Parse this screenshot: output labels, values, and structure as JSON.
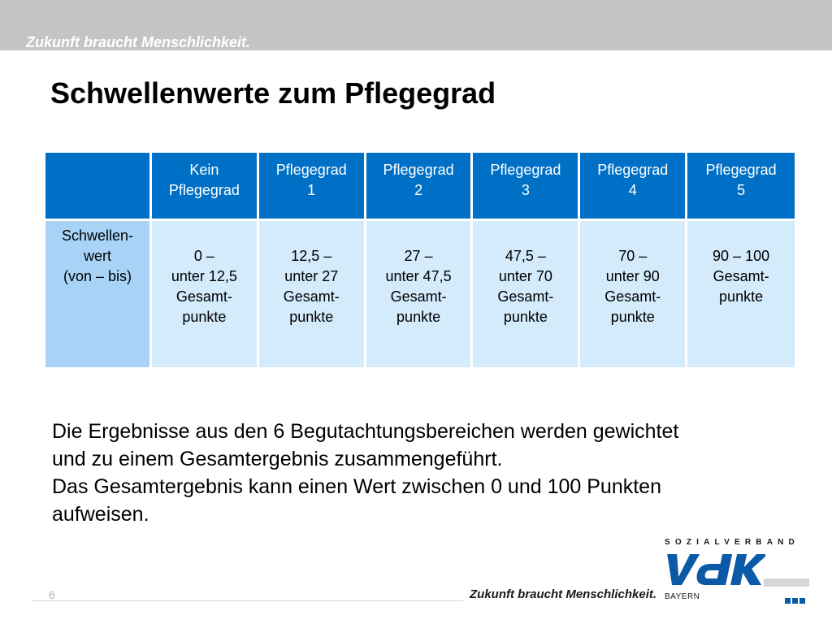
{
  "header": {
    "tagline": "Zukunft braucht Menschlichkeit."
  },
  "title": "Schwellenwerte zum Pflegegrad",
  "table": {
    "columns": [
      [
        "Kein",
        "Pflegegrad"
      ],
      [
        "Pflegegrad",
        "1"
      ],
      [
        "Pflegegrad",
        "2"
      ],
      [
        "Pflegegrad",
        "3"
      ],
      [
        "Pflegegrad",
        "4"
      ],
      [
        "Pflegegrad",
        "5"
      ]
    ],
    "row_label": [
      "Schwellen-",
      "wert",
      "(von – bis)"
    ],
    "cells": [
      [
        "0 –",
        "unter 12,5",
        "Gesamt-",
        "punkte"
      ],
      [
        "12,5 –",
        "unter 27",
        "Gesamt-",
        "punkte"
      ],
      [
        "27 –",
        "unter 47,5",
        "Gesamt-",
        "punkte"
      ],
      [
        "47,5 –",
        "unter 70",
        "Gesamt-",
        "punkte"
      ],
      [
        "70 –",
        "unter 90",
        "Gesamt-",
        "punkte"
      ],
      [
        "90 – 100",
        "Gesamt-",
        "punkte"
      ]
    ]
  },
  "body": {
    "lines": [
      "Die Ergebnisse aus den 6 Begutachtungsbereichen werden gewichtet",
      "und zu einem Gesamtergebnis zusammengeführt.",
      "Das Gesamtergebnis kann einen Wert zwischen 0 und 100 Punkten",
      "aufweisen."
    ]
  },
  "footer": {
    "page_number": "6",
    "tagline": "Zukunft braucht Menschlichkeit."
  },
  "logo": {
    "org": "SOZIALVERBAND",
    "brand": "VdK",
    "region": "BAYERN",
    "brand_color": "#0a5aa8"
  },
  "colors": {
    "header_fill": "#0070c6",
    "row_head_fill": "#a8d3f6",
    "cell_fill": "#d3ebfb",
    "top_band": "#c4c4c4"
  }
}
